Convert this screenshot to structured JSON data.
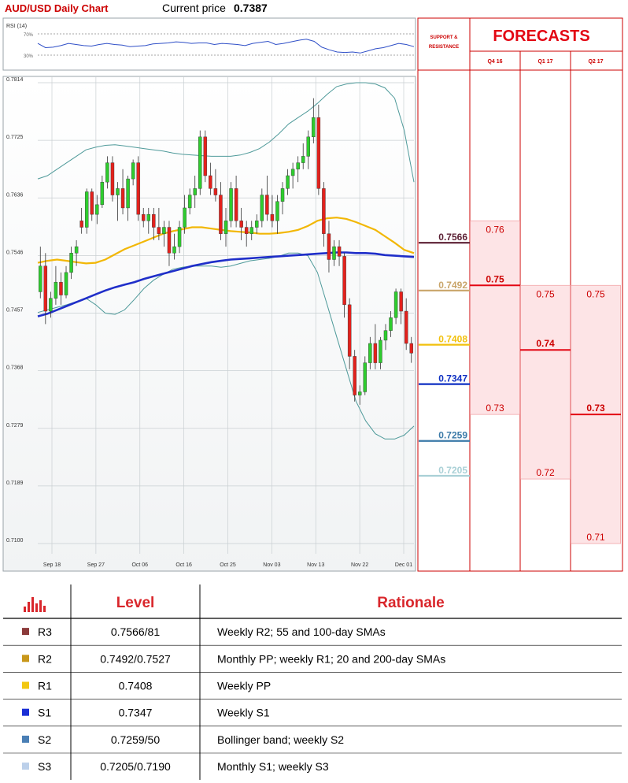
{
  "header": {
    "chart_title": "AUD/USD Daily Chart",
    "price_label": "Current price",
    "price_value": "0.7387"
  },
  "forecasts": {
    "title": "FORECASTS",
    "sr_label_line1": "SUPPORT &",
    "sr_label_line2": "RESISTANCE",
    "columns": [
      {
        "label": "Q4 16",
        "high": "0.76",
        "mid": "0.75",
        "low": "0.73",
        "high_v": 0.76,
        "mid_v": 0.75,
        "low_v": 0.73
      },
      {
        "label": "Q1 17",
        "high": "0.75",
        "mid": "0.74",
        "low": "0.72",
        "high_v": 0.75,
        "mid_v": 0.74,
        "low_v": 0.72
      },
      {
        "label": "Q2 17",
        "high": "0.75",
        "mid": "0.73",
        "low": "0.71",
        "high_v": 0.75,
        "mid_v": 0.73,
        "low_v": 0.71
      }
    ]
  },
  "levels": [
    {
      "name": "R3",
      "value": "0.7566",
      "v": 0.7566,
      "color": "#5b1f33"
    },
    {
      "name": "R2",
      "value": "0.7492",
      "v": 0.7492,
      "color": "#c9a56a"
    },
    {
      "name": "R1",
      "value": "0.7408",
      "v": 0.7408,
      "color": "#f2c10d"
    },
    {
      "name": "S1",
      "value": "0.7347",
      "v": 0.7347,
      "color": "#0d2fc2"
    },
    {
      "name": "S2",
      "value": "0.7259",
      "v": 0.7259,
      "color": "#3b7aa8"
    },
    {
      "name": "S3",
      "value": "0.7205",
      "v": 0.7205,
      "color": "#a9d0d6"
    }
  ],
  "table": {
    "header_level": "Level",
    "header_rationale": "Rationale",
    "rows": [
      {
        "name": "R3",
        "level": "0.7566/81",
        "rationale": "Weekly R2; 55 and 100-day SMAs",
        "color": "#8b3a3a"
      },
      {
        "name": "R2",
        "level": "0.7492/0.7527",
        "rationale": "Monthly PP; weekly R1; 20 and 200-day SMAs",
        "color": "#c8971a"
      },
      {
        "name": "R1",
        "level": "0.7408",
        "rationale": "Weekly PP",
        "color": "#f2c811"
      },
      {
        "name": "S1",
        "level": "0.7347",
        "rationale": "Weekly S1",
        "color": "#1a2fd6"
      },
      {
        "name": "S2",
        "level": "0.7259/50",
        "rationale": "Bollinger band; weekly S2",
        "color": "#4a7fb5"
      },
      {
        "name": "S3",
        "level": "0.7205/0.7190",
        "rationale": "Monthly S1; weekly S3",
        "color": "#bcd0ea"
      }
    ]
  },
  "chart_data": {
    "type": "candlestick",
    "rsi": {
      "label": "RSI (14)",
      "level_high": "70%",
      "level_low": "30%",
      "values": [
        52,
        44,
        45,
        48,
        52,
        50,
        48,
        47,
        50,
        52,
        50,
        49,
        46,
        47,
        48,
        51,
        52,
        53,
        55,
        54,
        52,
        53,
        53,
        50,
        52,
        51,
        50,
        48,
        52,
        54,
        56,
        50,
        52,
        55,
        58,
        60,
        56,
        45,
        40,
        36,
        35,
        36,
        34,
        38,
        42,
        44,
        48,
        52,
        50,
        46
      ]
    },
    "y_ticks": [
      "0.7814",
      "0.7725",
      "0.7636",
      "0.7546",
      "0.7457",
      "0.7368",
      "0.7279",
      "0.7189",
      "0.7100"
    ],
    "ylim": [
      0.71,
      0.7814
    ],
    "x_ticks": [
      "Sep 18",
      "Sep 27",
      "Oct 06",
      "Oct 16",
      "Oct 25",
      "Nov 03",
      "Nov 13",
      "Nov 22",
      "Dec 01"
    ],
    "candles": [
      [
        0.749,
        0.756,
        0.748,
        0.753
      ],
      [
        0.753,
        0.755,
        0.744,
        0.746
      ],
      [
        0.746,
        0.749,
        0.745,
        0.748
      ],
      [
        0.748,
        0.753,
        0.747,
        0.7505
      ],
      [
        0.7505,
        0.752,
        0.747,
        0.7485
      ],
      [
        0.7485,
        0.753,
        0.748,
        0.752
      ],
      [
        0.752,
        0.756,
        0.751,
        0.755
      ],
      [
        0.755,
        0.757,
        0.753,
        0.756
      ],
      [
        0.76,
        0.762,
        0.758,
        0.759
      ],
      [
        0.759,
        0.765,
        0.758,
        0.7645
      ],
      [
        0.7645,
        0.765,
        0.76,
        0.761
      ],
      [
        0.761,
        0.764,
        0.7595,
        0.7625
      ],
      [
        0.7625,
        0.767,
        0.762,
        0.766
      ],
      [
        0.766,
        0.77,
        0.765,
        0.769
      ],
      [
        0.769,
        0.77,
        0.763,
        0.764
      ],
      [
        0.764,
        0.766,
        0.76,
        0.765
      ],
      [
        0.765,
        0.768,
        0.761,
        0.762
      ],
      [
        0.762,
        0.767,
        0.76,
        0.7665
      ],
      [
        0.7665,
        0.7695,
        0.7655,
        0.769
      ],
      [
        0.769,
        0.77,
        0.76,
        0.761
      ],
      [
        0.761,
        0.762,
        0.759,
        0.76
      ],
      [
        0.76,
        0.762,
        0.758,
        0.761
      ],
      [
        0.761,
        0.762,
        0.757,
        0.759
      ],
      [
        0.759,
        0.762,
        0.757,
        0.758
      ],
      [
        0.758,
        0.76,
        0.756,
        0.759
      ],
      [
        0.759,
        0.76,
        0.753,
        0.755
      ],
      [
        0.755,
        0.758,
        0.754,
        0.756
      ],
      [
        0.756,
        0.76,
        0.755,
        0.759
      ],
      [
        0.759,
        0.764,
        0.758,
        0.762
      ],
      [
        0.762,
        0.765,
        0.761,
        0.764
      ],
      [
        0.764,
        0.767,
        0.762,
        0.765
      ],
      [
        0.765,
        0.774,
        0.764,
        0.773
      ],
      [
        0.773,
        0.774,
        0.766,
        0.767
      ],
      [
        0.767,
        0.769,
        0.764,
        0.765
      ],
      [
        0.765,
        0.768,
        0.763,
        0.764
      ],
      [
        0.764,
        0.766,
        0.757,
        0.758
      ],
      [
        0.758,
        0.762,
        0.756,
        0.76
      ],
      [
        0.76,
        0.766,
        0.759,
        0.765
      ],
      [
        0.765,
        0.767,
        0.759,
        0.76
      ],
      [
        0.76,
        0.762,
        0.757,
        0.759
      ],
      [
        0.759,
        0.76,
        0.756,
        0.758
      ],
      [
        0.758,
        0.76,
        0.757,
        0.759
      ],
      [
        0.759,
        0.761,
        0.758,
        0.76
      ],
      [
        0.76,
        0.765,
        0.759,
        0.764
      ],
      [
        0.764,
        0.767,
        0.76,
        0.761
      ],
      [
        0.761,
        0.764,
        0.759,
        0.76
      ],
      [
        0.76,
        0.764,
        0.758,
        0.763
      ],
      [
        0.763,
        0.766,
        0.761,
        0.765
      ],
      [
        0.765,
        0.768,
        0.764,
        0.767
      ],
      [
        0.767,
        0.769,
        0.765,
        0.768
      ],
      [
        0.768,
        0.77,
        0.766,
        0.769
      ],
      [
        0.769,
        0.772,
        0.768,
        0.77
      ],
      [
        0.77,
        0.774,
        0.768,
        0.773
      ],
      [
        0.773,
        0.779,
        0.772,
        0.776
      ],
      [
        0.776,
        0.778,
        0.764,
        0.765
      ],
      [
        0.765,
        0.766,
        0.756,
        0.758
      ],
      [
        0.758,
        0.76,
        0.752,
        0.754
      ],
      [
        0.754,
        0.757,
        0.753,
        0.756
      ],
      [
        0.756,
        0.757,
        0.753,
        0.7545
      ],
      [
        0.7545,
        0.755,
        0.745,
        0.747
      ],
      [
        0.747,
        0.748,
        0.737,
        0.739
      ],
      [
        0.739,
        0.74,
        0.732,
        0.733
      ],
      [
        0.733,
        0.7345,
        0.7315,
        0.7335
      ],
      [
        0.7335,
        0.739,
        0.733,
        0.738
      ],
      [
        0.738,
        0.742,
        0.737,
        0.741
      ],
      [
        0.741,
        0.744,
        0.737,
        0.738
      ],
      [
        0.738,
        0.742,
        0.737,
        0.7415
      ],
      [
        0.7415,
        0.744,
        0.74,
        0.743
      ],
      [
        0.743,
        0.746,
        0.742,
        0.745
      ],
      [
        0.745,
        0.7495,
        0.744,
        0.749
      ],
      [
        0.749,
        0.7495,
        0.744,
        0.746
      ],
      [
        0.746,
        0.748,
        0.74,
        0.741
      ],
      [
        0.741,
        0.742,
        0.738,
        0.7395
      ]
    ],
    "sma_yellow": [
      0.7535,
      0.7538,
      0.754,
      0.7538,
      0.7536,
      0.7534,
      0.7535,
      0.754,
      0.7548,
      0.7556,
      0.7562,
      0.7568,
      0.7574,
      0.758,
      0.7584,
      0.7587,
      0.759,
      0.759,
      0.7588,
      0.7586,
      0.7584,
      0.7583,
      0.7582,
      0.758,
      0.758,
      0.7581,
      0.7583,
      0.7586,
      0.7592,
      0.76,
      0.7604,
      0.7605,
      0.7603,
      0.7598,
      0.7592,
      0.7586,
      0.7576,
      0.7566,
      0.7555,
      0.755
    ],
    "sma_blue": [
      0.7452,
      0.7456,
      0.7462,
      0.7468,
      0.7474,
      0.748,
      0.7486,
      0.7492,
      0.7497,
      0.7501,
      0.7505,
      0.751,
      0.7514,
      0.7518,
      0.7522,
      0.7526,
      0.753,
      0.7533,
      0.7536,
      0.7538,
      0.754,
      0.7541,
      0.7542,
      0.7543,
      0.7544,
      0.7545,
      0.7546,
      0.7547,
      0.7548,
      0.7549,
      0.755,
      0.7551,
      0.7551,
      0.755,
      0.755,
      0.7549,
      0.7547,
      0.7546,
      0.7545,
      0.7544
    ],
    "boll_upper": [
      0.7665,
      0.767,
      0.768,
      0.769,
      0.77,
      0.771,
      0.7714,
      0.7717,
      0.7718,
      0.7716,
      0.7714,
      0.7712,
      0.771,
      0.7708,
      0.7705,
      0.7703,
      0.7702,
      0.7701,
      0.77,
      0.77,
      0.77,
      0.7702,
      0.7706,
      0.7712,
      0.7722,
      0.7735,
      0.775,
      0.776,
      0.777,
      0.7782,
      0.7796,
      0.7808,
      0.7812,
      0.7814,
      0.7814,
      0.7812,
      0.7806,
      0.779,
      0.774,
      0.766
    ],
    "boll_lower": [
      0.7458,
      0.7462,
      0.7466,
      0.747,
      0.7475,
      0.748,
      0.747,
      0.7457,
      0.7455,
      0.7462,
      0.7478,
      0.7495,
      0.7508,
      0.7517,
      0.7525,
      0.7528,
      0.753,
      0.753,
      0.753,
      0.7528,
      0.753,
      0.7534,
      0.7538,
      0.754,
      0.7542,
      0.7545,
      0.755,
      0.755,
      0.7546,
      0.752,
      0.747,
      0.742,
      0.737,
      0.732,
      0.729,
      0.727,
      0.7262,
      0.7262,
      0.7268,
      0.7282
    ]
  }
}
